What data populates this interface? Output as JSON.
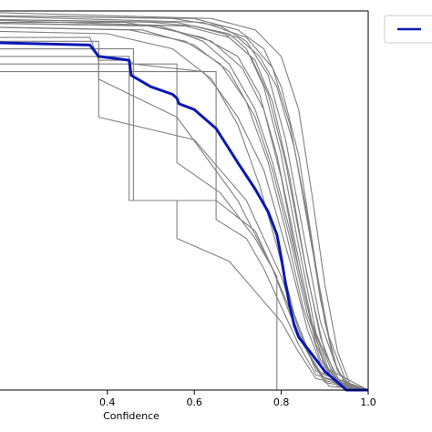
{
  "chart_data": {
    "type": "line",
    "title": "",
    "xlabel": "Confidence",
    "ylabel": "",
    "xlim": [
      0.0,
      1.0
    ],
    "ylim": [
      0.0,
      1.0
    ],
    "xticks": [
      {
        "value": 0.4,
        "label": "0.4"
      },
      {
        "value": 0.6,
        "label": "0.6"
      },
      {
        "value": 0.8,
        "label": "0.8"
      },
      {
        "value": 1.0,
        "label": "1.0"
      }
    ],
    "grid": false,
    "legend": {
      "position": "top-right",
      "visible_text": ""
    },
    "colors": {
      "mean": "#0a18b4",
      "individual": "#808080",
      "axes": "#000000"
    },
    "series": [
      {
        "role": "mean",
        "x": [
          0.0,
          0.36,
          0.38,
          0.45,
          0.455,
          0.5,
          0.55,
          0.56,
          0.565,
          0.6,
          0.62,
          0.65,
          0.7,
          0.74,
          0.77,
          0.79,
          0.8,
          0.81,
          0.82,
          0.83,
          0.84,
          0.86,
          0.88,
          0.9,
          0.92,
          0.95,
          0.97,
          1.0
        ],
        "y": [
          0.92,
          0.91,
          0.88,
          0.87,
          0.83,
          0.8,
          0.78,
          0.77,
          0.755,
          0.74,
          0.72,
          0.69,
          0.6,
          0.53,
          0.47,
          0.41,
          0.35,
          0.28,
          0.22,
          0.17,
          0.14,
          0.11,
          0.08,
          0.05,
          0.03,
          0.0,
          0.0,
          0.0
        ]
      },
      {
        "role": "individual",
        "x": [
          0.0,
          0.5,
          0.6,
          0.68,
          0.72,
          0.76,
          0.8,
          0.84,
          0.88,
          0.92,
          0.96,
          1.0
        ],
        "y": [
          0.98,
          0.97,
          0.96,
          0.94,
          0.9,
          0.8,
          0.62,
          0.38,
          0.15,
          0.04,
          0.0,
          0.0
        ]
      },
      {
        "role": "individual",
        "x": [
          0.0,
          0.55,
          0.66,
          0.72,
          0.77,
          0.81,
          0.85,
          0.89,
          0.93,
          0.97,
          1.0
        ],
        "y": [
          0.99,
          0.98,
          0.96,
          0.92,
          0.83,
          0.66,
          0.42,
          0.18,
          0.05,
          0.0,
          0.0
        ]
      },
      {
        "role": "individual",
        "x": [
          0.0,
          0.5,
          0.62,
          0.7,
          0.75,
          0.79,
          0.83,
          0.87,
          0.91,
          0.95,
          1.0
        ],
        "y": [
          0.97,
          0.96,
          0.93,
          0.88,
          0.78,
          0.62,
          0.4,
          0.18,
          0.05,
          0.0,
          0.0
        ]
      },
      {
        "role": "individual",
        "x": [
          0.0,
          0.6,
          0.7,
          0.76,
          0.8,
          0.84,
          0.87,
          0.9,
          0.93,
          0.96,
          1.0
        ],
        "y": [
          0.99,
          0.98,
          0.95,
          0.9,
          0.8,
          0.62,
          0.4,
          0.18,
          0.05,
          0.0,
          0.0
        ]
      },
      {
        "role": "individual",
        "x": [
          0.0,
          0.45,
          0.58,
          0.66,
          0.72,
          0.77,
          0.81,
          0.85,
          0.89,
          0.93,
          1.0
        ],
        "y": [
          0.96,
          0.95,
          0.92,
          0.86,
          0.76,
          0.6,
          0.42,
          0.22,
          0.08,
          0.01,
          0.0
        ]
      },
      {
        "role": "individual",
        "x": [
          0.0,
          0.58,
          0.68,
          0.74,
          0.78,
          0.82,
          0.86,
          0.9,
          0.94,
          1.0
        ],
        "y": [
          0.98,
          0.96,
          0.93,
          0.87,
          0.76,
          0.56,
          0.3,
          0.1,
          0.01,
          0.0
        ]
      },
      {
        "role": "individual",
        "x": [
          0.0,
          0.52,
          0.64,
          0.71,
          0.76,
          0.8,
          0.84,
          0.88,
          0.92,
          1.0
        ],
        "y": [
          0.97,
          0.96,
          0.92,
          0.85,
          0.74,
          0.56,
          0.32,
          0.12,
          0.02,
          0.0
        ]
      },
      {
        "role": "individual",
        "x": [
          0.0,
          0.62,
          0.72,
          0.78,
          0.82,
          0.86,
          0.89,
          0.92,
          0.95,
          1.0
        ],
        "y": [
          0.99,
          0.97,
          0.93,
          0.85,
          0.7,
          0.46,
          0.24,
          0.08,
          0.01,
          0.0
        ]
      },
      {
        "role": "individual",
        "x": [
          0.0,
          0.4,
          0.55,
          0.64,
          0.7,
          0.75,
          0.79,
          0.83,
          0.87,
          0.91,
          1.0
        ],
        "y": [
          0.95,
          0.94,
          0.9,
          0.82,
          0.7,
          0.54,
          0.38,
          0.2,
          0.08,
          0.01,
          0.0
        ]
      },
      {
        "role": "individual",
        "x": [
          0.0,
          0.56,
          0.67,
          0.73,
          0.77,
          0.81,
          0.85,
          0.89,
          0.93,
          1.0
        ],
        "y": [
          0.98,
          0.97,
          0.94,
          0.88,
          0.78,
          0.6,
          0.36,
          0.14,
          0.02,
          0.0
        ]
      },
      {
        "role": "individual",
        "x": [
          0.0,
          0.64,
          0.74,
          0.8,
          0.84,
          0.87,
          0.9,
          0.93,
          0.96,
          1.0
        ],
        "y": [
          1.0,
          0.98,
          0.95,
          0.88,
          0.74,
          0.52,
          0.28,
          0.1,
          0.01,
          0.0
        ]
      },
      {
        "role": "individual",
        "x": [
          0.0,
          0.48,
          0.6,
          0.68,
          0.74,
          0.78,
          0.82,
          0.86,
          0.9,
          0.94,
          1.0
        ],
        "y": [
          0.96,
          0.95,
          0.91,
          0.84,
          0.72,
          0.58,
          0.4,
          0.2,
          0.07,
          0.01,
          0.0
        ]
      },
      {
        "role": "individual",
        "x": [
          0.0,
          0.6,
          0.7,
          0.75,
          0.79,
          0.83,
          0.87,
          0.91,
          0.95,
          1.0
        ],
        "y": [
          0.97,
          0.96,
          0.93,
          0.88,
          0.8,
          0.64,
          0.38,
          0.14,
          0.02,
          0.0
        ]
      },
      {
        "role": "individual",
        "x": [
          0.0,
          0.36,
          0.38,
          0.45,
          0.46,
          0.62,
          0.65,
          0.7,
          0.76,
          0.82,
          0.86,
          0.9,
          1.0
        ],
        "y": [
          0.93,
          0.93,
          0.87,
          0.87,
          0.86,
          0.84,
          0.8,
          0.72,
          0.58,
          0.34,
          0.16,
          0.04,
          0.0
        ]
      },
      {
        "role": "individual",
        "x": [
          0.0,
          0.46,
          0.46,
          0.52,
          0.65,
          0.74,
          0.78,
          0.81,
          0.85,
          0.9,
          1.0
        ],
        "y": [
          0.9,
          0.9,
          0.5,
          0.5,
          0.5,
          0.42,
          0.32,
          0.24,
          0.12,
          0.03,
          0.0
        ]
      },
      {
        "role": "individual",
        "x": [
          0.0,
          0.38,
          0.38,
          0.56,
          0.7,
          0.78,
          0.82,
          0.86,
          0.9,
          1.0
        ],
        "y": [
          0.92,
          0.92,
          0.82,
          0.72,
          0.5,
          0.32,
          0.2,
          0.1,
          0.02,
          0.0
        ]
      },
      {
        "role": "individual",
        "x": [
          0.0,
          0.45,
          0.45,
          0.56,
          0.56,
          0.68,
          0.74,
          0.8,
          0.84,
          0.88,
          1.0
        ],
        "y": [
          0.88,
          0.88,
          0.5,
          0.5,
          0.4,
          0.34,
          0.26,
          0.18,
          0.1,
          0.03,
          0.0
        ]
      },
      {
        "role": "individual",
        "x": [
          0.0,
          0.65,
          0.65,
          0.72,
          0.76,
          0.8,
          0.84,
          0.88,
          1.0
        ],
        "y": [
          0.84,
          0.84,
          0.45,
          0.4,
          0.32,
          0.22,
          0.12,
          0.04,
          0.0
        ]
      },
      {
        "role": "individual",
        "x": [
          0.0,
          0.56,
          0.56,
          0.66,
          0.74,
          0.79,
          0.79,
          0.83,
          0.87,
          1.0
        ],
        "y": [
          0.86,
          0.86,
          0.6,
          0.52,
          0.4,
          0.3,
          0.0,
          0.0,
          0.0,
          0.0
        ]
      },
      {
        "role": "individual",
        "x": [
          0.0,
          0.44,
          0.55,
          0.62,
          0.68,
          0.74,
          0.78,
          0.82,
          0.86,
          0.9,
          1.0
        ],
        "y": [
          0.97,
          0.97,
          0.95,
          0.92,
          0.86,
          0.74,
          0.6,
          0.42,
          0.22,
          0.06,
          0.0
        ]
      },
      {
        "role": "individual",
        "x": [
          0.0,
          0.38,
          0.38,
          0.6,
          0.72,
          0.8,
          0.84,
          0.88,
          1.0
        ],
        "y": [
          0.9,
          0.9,
          0.72,
          0.66,
          0.5,
          0.3,
          0.16,
          0.05,
          0.0
        ]
      }
    ]
  }
}
